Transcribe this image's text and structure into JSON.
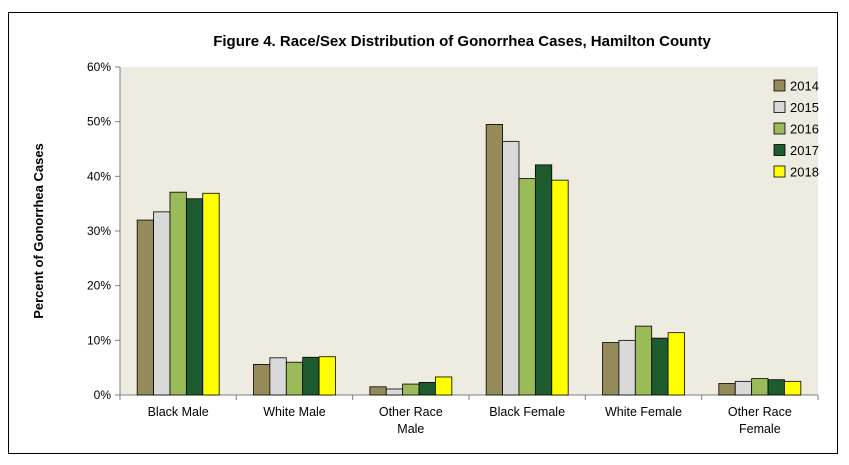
{
  "chart_data": {
    "type": "bar",
    "title": "Figure 4.  Race/Sex Distribution of Gonorrhea Cases, Hamilton County",
    "xlabel": "",
    "ylabel": "Percent of Gonorrhea Cases",
    "ylim": [
      0,
      60
    ],
    "yticks": [
      "0%",
      "10%",
      "20%",
      "30%",
      "40%",
      "50%",
      "60%"
    ],
    "y_unit": "percent",
    "grid": false,
    "legend_position": "top-right",
    "categories": [
      [
        "Black Male"
      ],
      [
        "White Male"
      ],
      [
        "Other Race",
        "Male"
      ],
      [
        "Black Female"
      ],
      [
        "White Female"
      ],
      [
        "Other Race",
        "Female"
      ]
    ],
    "series": [
      {
        "name": "2014",
        "color": "#958b5a",
        "values": [
          32.0,
          5.6,
          1.5,
          49.5,
          9.6,
          2.1
        ]
      },
      {
        "name": "2015",
        "color": "#d9d9d9",
        "values": [
          33.5,
          6.8,
          1.1,
          46.4,
          10.0,
          2.5
        ]
      },
      {
        "name": "2016",
        "color": "#9bbb59",
        "values": [
          37.1,
          6.0,
          2.0,
          39.6,
          12.6,
          3.0
        ]
      },
      {
        "name": "2017",
        "color": "#1e5b2e",
        "values": [
          35.9,
          6.9,
          2.3,
          42.1,
          10.4,
          2.8
        ]
      },
      {
        "name": "2018",
        "color": "#ffff00",
        "values": [
          36.9,
          7.0,
          3.3,
          39.3,
          11.4,
          2.5
        ]
      }
    ]
  }
}
